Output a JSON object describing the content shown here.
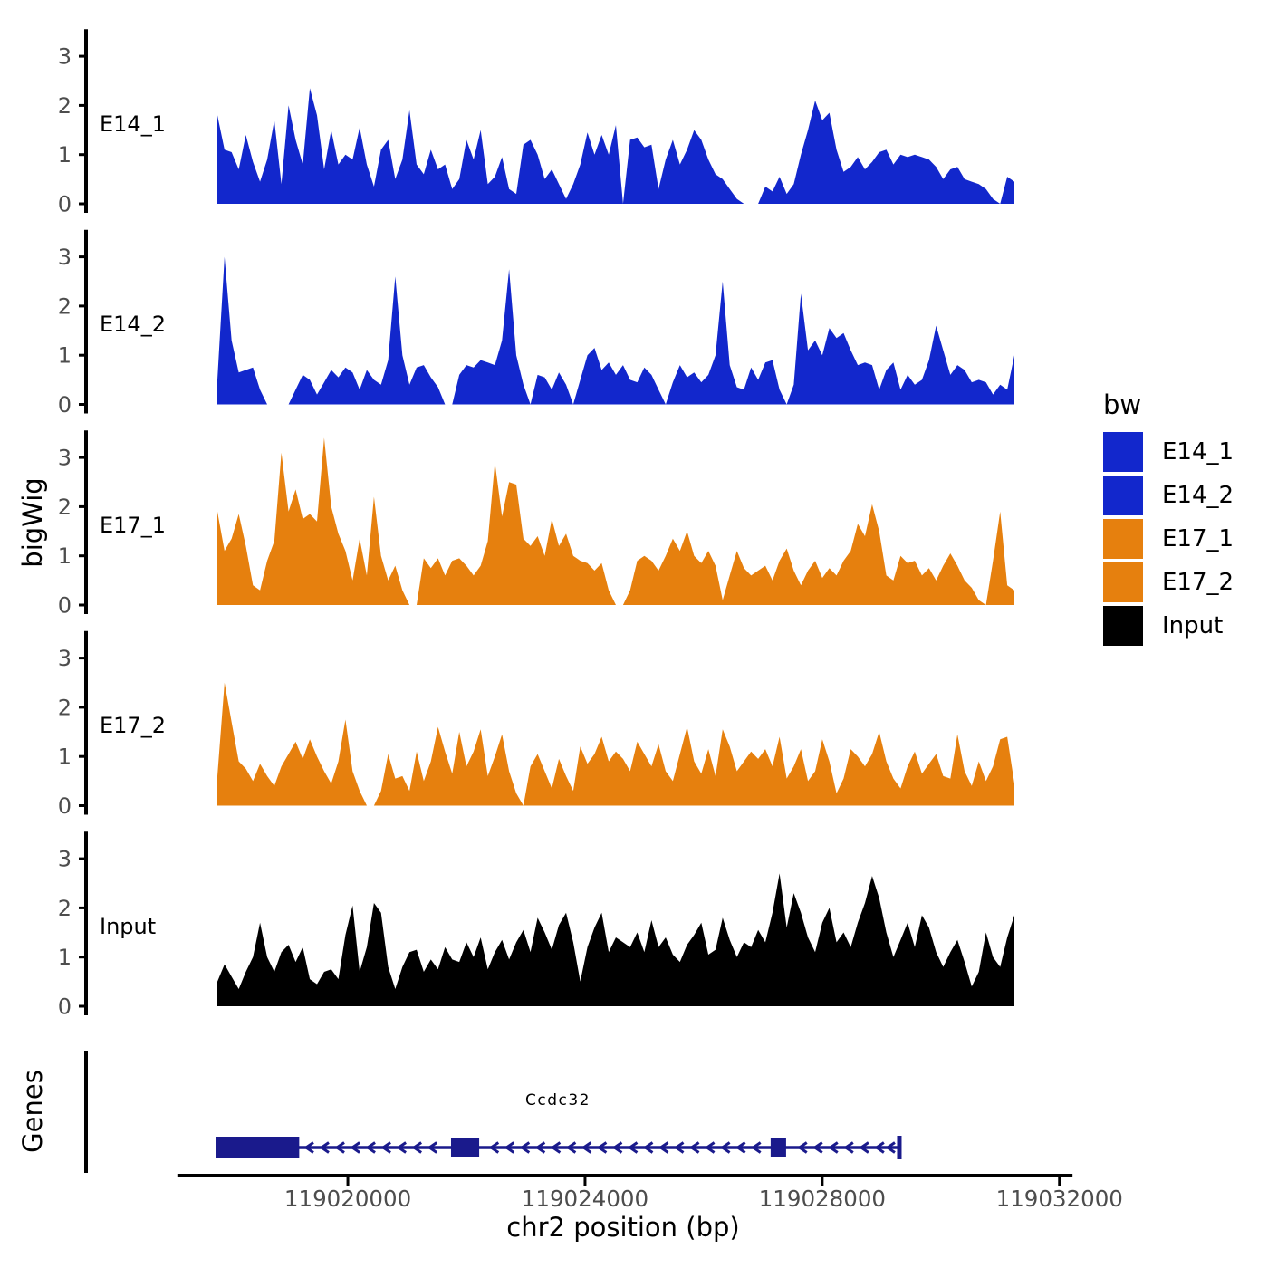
{
  "axis_titles": {
    "y": "bigWig",
    "genes": "Genes",
    "x": "chr2 position (bp)"
  },
  "legend": {
    "title": "bw",
    "items": [
      {
        "label": "E14_1",
        "color": "#1227CC"
      },
      {
        "label": "E14_2",
        "color": "#1227CC"
      },
      {
        "label": "E17_1",
        "color": "#E6800E"
      },
      {
        "label": "E17_2",
        "color": "#E6800E"
      },
      {
        "label": "Input",
        "color": "#000000"
      }
    ]
  },
  "gene_track": {
    "label": "Genes",
    "gene": {
      "name": "Ccdc32",
      "chrom": "chr2",
      "strand": "-",
      "start_bp": 119017770,
      "end_bp": 119029300,
      "exons": [
        [
          119017770,
          119019180
        ],
        [
          119021740,
          119022215
        ],
        [
          119027130,
          119027390
        ]
      ],
      "color": "#1A1A8C"
    }
  },
  "chart_data": {
    "type": "area",
    "title": "",
    "xlabel": "chr2 position (bp)",
    "ylabel": "bigWig",
    "legend_title": "bw",
    "legend_position": "right",
    "grid": false,
    "x_start": 119017800,
    "x_step": 120,
    "xlim": [
      119017125,
      119032220
    ],
    "x_ticks": [
      119020000,
      119024000,
      119028000,
      119032000
    ],
    "y_ticks": [
      0,
      1,
      2,
      3
    ],
    "ylim": [
      0,
      3.55
    ],
    "tick_label_color": "#4D4D4D",
    "series": [
      {
        "name": "E14_1",
        "color": "#1227CC",
        "values": [
          1.8,
          1.1,
          1.05,
          0.7,
          1.4,
          0.85,
          0.45,
          0.9,
          1.7,
          0.4,
          2.0,
          1.3,
          0.8,
          2.35,
          1.8,
          0.7,
          1.5,
          0.8,
          1.0,
          0.9,
          1.55,
          0.8,
          0.35,
          1.1,
          1.3,
          0.5,
          0.9,
          1.9,
          0.8,
          0.6,
          1.1,
          0.7,
          0.8,
          0.3,
          0.5,
          1.3,
          0.9,
          1.5,
          0.4,
          0.55,
          0.95,
          0.3,
          0.2,
          1.2,
          1.3,
          1.0,
          0.5,
          0.7,
          0.4,
          0.1,
          0.4,
          0.8,
          1.45,
          1.0,
          1.4,
          1.0,
          1.6,
          0,
          1.3,
          1.35,
          1.15,
          1.2,
          0.3,
          0.9,
          1.3,
          0.8,
          1.1,
          1.5,
          1.3,
          0.9,
          0.6,
          0.5,
          0.3,
          0.1,
          0,
          0,
          0,
          0.35,
          0.25,
          0.55,
          0.2,
          0.4,
          1.0,
          1.5,
          2.1,
          1.7,
          1.85,
          1.1,
          0.65,
          0.75,
          0.95,
          0.7,
          0.85,
          1.05,
          1.1,
          0.8,
          1.0,
          0.95,
          1.0,
          0.95,
          0.9,
          0.75,
          0.5,
          0.7,
          0.75,
          0.5,
          0.45,
          0.4,
          0.3,
          0.1,
          0,
          0.55,
          0.45
        ]
      },
      {
        "name": "E14_2",
        "color": "#1227CC",
        "values": [
          0.5,
          3.0,
          1.3,
          0.65,
          0.7,
          0.75,
          0.3,
          0,
          0,
          0,
          0,
          0.3,
          0.6,
          0.5,
          0.2,
          0.45,
          0.7,
          0.55,
          0.75,
          0.65,
          0.3,
          0.7,
          0.5,
          0.4,
          0.9,
          2.6,
          1.0,
          0.4,
          0.75,
          0.8,
          0.55,
          0.35,
          0,
          0,
          0.6,
          0.8,
          0.75,
          0.9,
          0.85,
          0.8,
          1.3,
          2.75,
          1.0,
          0.4,
          0,
          0.6,
          0.55,
          0.3,
          0.65,
          0.4,
          0,
          0.5,
          1.0,
          1.15,
          0.7,
          0.85,
          0.6,
          0.8,
          0.5,
          0.45,
          0.75,
          0.6,
          0.3,
          0,
          0.45,
          0.8,
          0.55,
          0.65,
          0.45,
          0.6,
          1.0,
          2.5,
          0.8,
          0.35,
          0.3,
          0.75,
          0.5,
          0.85,
          0.9,
          0.3,
          0,
          0.4,
          2.25,
          1.1,
          1.3,
          1.0,
          1.55,
          1.35,
          1.45,
          1.1,
          0.8,
          0.85,
          0.8,
          0.3,
          0.7,
          0.85,
          0.3,
          0.6,
          0.4,
          0.5,
          0.9,
          1.6,
          1.1,
          0.6,
          0.8,
          0.7,
          0.45,
          0.5,
          0.45,
          0.2,
          0.4,
          0.3,
          1.0
        ]
      },
      {
        "name": "E17_1",
        "color": "#E6800E",
        "values": [
          1.9,
          1.1,
          1.35,
          1.85,
          1.2,
          0.4,
          0.3,
          0.9,
          1.3,
          3.1,
          1.9,
          2.35,
          1.75,
          1.85,
          1.7,
          3.4,
          2.0,
          1.45,
          1.1,
          0.5,
          1.35,
          0.6,
          2.2,
          1.0,
          0.5,
          0.8,
          0.3,
          0,
          0,
          0.95,
          0.75,
          0.95,
          0.6,
          0.9,
          0.95,
          0.8,
          0.6,
          0.8,
          1.3,
          2.9,
          1.8,
          2.5,
          2.45,
          1.35,
          1.2,
          1.4,
          1.0,
          1.75,
          1.2,
          1.45,
          1.0,
          0.9,
          0.85,
          0.7,
          0.85,
          0.3,
          0,
          0,
          0.3,
          0.9,
          1.0,
          0.9,
          0.7,
          1.0,
          1.35,
          1.1,
          1.5,
          1.0,
          0.85,
          1.1,
          0.8,
          0.1,
          0.6,
          1.1,
          0.75,
          0.6,
          0.7,
          0.8,
          0.5,
          0.9,
          1.15,
          0.7,
          0.4,
          0.7,
          0.9,
          0.55,
          0.75,
          0.6,
          0.9,
          1.1,
          1.65,
          1.4,
          2.05,
          1.5,
          0.6,
          0.5,
          1.0,
          0.85,
          0.9,
          0.6,
          0.75,
          0.5,
          0.8,
          1.05,
          0.8,
          0.5,
          0.35,
          0.1,
          0,
          0.9,
          1.9,
          0.4,
          0.3
        ]
      },
      {
        "name": "E17_2",
        "color": "#E6800E",
        "values": [
          0.6,
          2.5,
          1.7,
          0.9,
          0.75,
          0.5,
          0.85,
          0.6,
          0.4,
          0.8,
          1.05,
          1.3,
          0.95,
          1.35,
          1.0,
          0.7,
          0.45,
          0.9,
          1.75,
          0.7,
          0.3,
          0,
          0,
          0.3,
          1.05,
          0.55,
          0.6,
          0.3,
          1.1,
          0.5,
          0.9,
          1.6,
          1.1,
          0.65,
          1.5,
          0.8,
          1.1,
          1.55,
          0.6,
          1.0,
          1.45,
          0.7,
          0.25,
          0,
          0.8,
          1.05,
          0.7,
          0.35,
          0.95,
          0.6,
          0.3,
          1.2,
          0.85,
          1.05,
          1.4,
          0.9,
          1.1,
          0.95,
          0.7,
          1.3,
          1.05,
          0.8,
          1.25,
          0.7,
          0.5,
          1.05,
          1.6,
          0.9,
          0.65,
          1.15,
          0.6,
          1.55,
          1.2,
          0.7,
          0.9,
          1.1,
          0.95,
          1.15,
          0.8,
          1.4,
          0.55,
          0.8,
          1.15,
          0.5,
          0.7,
          1.35,
          0.9,
          0.25,
          0.55,
          1.15,
          1.0,
          0.8,
          1.05,
          1.5,
          0.9,
          0.55,
          0.35,
          0.8,
          1.1,
          0.65,
          0.85,
          1.05,
          0.6,
          0.55,
          1.45,
          0.7,
          0.4,
          0.9,
          0.5,
          0.8,
          1.35,
          1.4,
          0.45
        ]
      },
      {
        "name": "Input",
        "color": "#000000",
        "values": [
          0.5,
          0.85,
          0.6,
          0.35,
          0.7,
          1.0,
          1.7,
          1.0,
          0.7,
          1.1,
          1.25,
          0.9,
          1.2,
          0.55,
          0.45,
          0.7,
          0.75,
          0.55,
          1.45,
          2.05,
          0.7,
          1.2,
          2.1,
          1.9,
          0.8,
          0.35,
          0.8,
          1.1,
          1.15,
          0.7,
          0.95,
          0.75,
          1.2,
          0.95,
          0.9,
          1.3,
          1.0,
          1.4,
          0.75,
          1.1,
          1.35,
          0.95,
          1.3,
          1.55,
          1.1,
          1.8,
          1.5,
          1.15,
          1.65,
          1.9,
          1.3,
          0.5,
          1.2,
          1.6,
          1.9,
          1.1,
          1.4,
          1.3,
          1.2,
          1.5,
          1.1,
          1.75,
          1.2,
          1.4,
          1.05,
          0.9,
          1.25,
          1.45,
          1.7,
          1.05,
          1.15,
          1.8,
          1.35,
          1.0,
          1.3,
          1.2,
          1.55,
          1.3,
          1.9,
          2.7,
          1.6,
          2.3,
          1.9,
          1.4,
          1.1,
          1.7,
          2.0,
          1.3,
          1.5,
          1.2,
          1.7,
          2.1,
          2.65,
          2.2,
          1.5,
          1.0,
          1.35,
          1.7,
          1.2,
          1.85,
          1.6,
          1.1,
          0.8,
          1.1,
          1.35,
          0.9,
          0.4,
          0.7,
          1.5,
          1.0,
          0.8,
          1.4,
          1.85
        ]
      }
    ]
  }
}
